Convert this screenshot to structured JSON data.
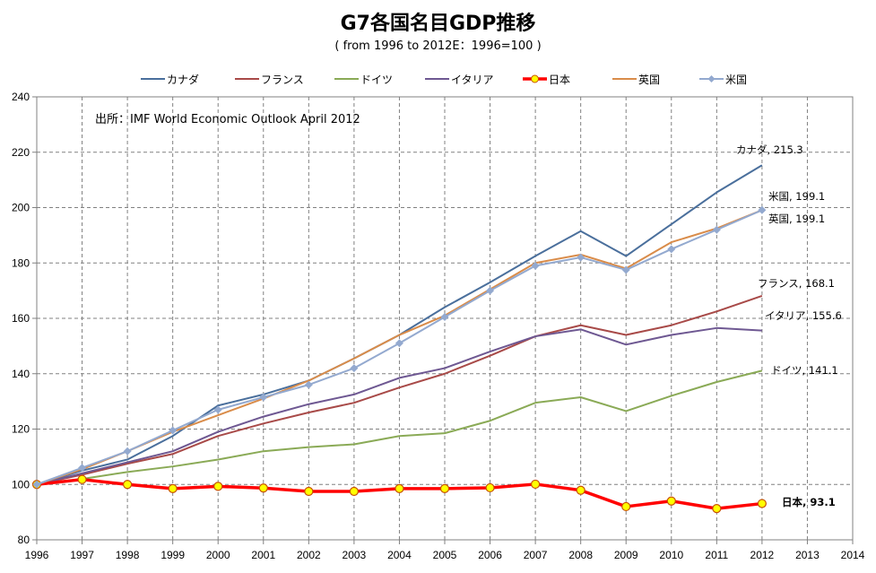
{
  "chart_data": {
    "type": "line",
    "title": "G7各国名目GDP推移",
    "subtitle": "( from  1996  to  2012E：1996=100 )",
    "annotation": "出所：IMF World Economic Outlook  April 2012",
    "xlabel": "",
    "ylabel": "",
    "x": [
      1996,
      1997,
      1998,
      1999,
      2000,
      2001,
      2002,
      2003,
      2004,
      2005,
      2006,
      2007,
      2008,
      2009,
      2010,
      2011,
      2012
    ],
    "xticks": [
      "1996",
      "1997",
      "1998",
      "1999",
      "2000",
      "2001",
      "2002",
      "2003",
      "2004",
      "2005",
      "2006",
      "2007",
      "2008",
      "2009",
      "2010",
      "2011",
      "2012",
      "2013",
      "2014"
    ],
    "xlim": [
      1996,
      2014
    ],
    "ylim": [
      80,
      240
    ],
    "yticks": [
      80,
      100,
      120,
      140,
      160,
      180,
      200,
      220,
      240
    ],
    "grid": true,
    "legend": "top",
    "series": [
      {
        "name": "カナダ",
        "color": "#4a6f9c",
        "marker": "none",
        "width": 2,
        "values": [
          100,
          105,
          109,
          117.5,
          128.5,
          132.5,
          137.5,
          145.5,
          154,
          164,
          173,
          182.5,
          191.5,
          182.5,
          194,
          205.5,
          215.3
        ],
        "label": "カナダ, 215.3"
      },
      {
        "name": "フランス",
        "color": "#a84a48",
        "marker": "none",
        "width": 2,
        "values": [
          100,
          103.5,
          107.5,
          111,
          117.5,
          122,
          126,
          129.5,
          135,
          140,
          146.5,
          153.5,
          157.5,
          154,
          157.5,
          162.5,
          168.1
        ],
        "label": "フランス, 168.1"
      },
      {
        "name": "ドイツ",
        "color": "#8aaa56",
        "marker": "none",
        "width": 2,
        "values": [
          100,
          102,
          104.5,
          106.5,
          109,
          112,
          113.5,
          114.5,
          117.5,
          118.5,
          123,
          129.5,
          131.5,
          126.5,
          132,
          137,
          141.1
        ],
        "label": "ドイツ, 141.1"
      },
      {
        "name": "イタリア",
        "color": "#6e5892",
        "marker": "none",
        "width": 2,
        "values": [
          100,
          104,
          108,
          112,
          119,
          124.5,
          129,
          132.5,
          138.5,
          142,
          148,
          153.5,
          156,
          150.5,
          154,
          156.5,
          155.6
        ],
        "label": "イタリア, 155.6"
      },
      {
        "name": "日本",
        "color": "#ff0000",
        "marker": "circle",
        "markerFill": "#ffff00",
        "markerStroke": "#c85000",
        "width": 3.5,
        "values": [
          100,
          101.8,
          100,
          98.5,
          99.3,
          98.7,
          97.5,
          97.5,
          98.5,
          98.5,
          98.8,
          100.1,
          97.9,
          92,
          94,
          91.3,
          93.1
        ],
        "label": "日本, 93.1",
        "labelBold": true
      },
      {
        "name": "英国",
        "color": "#d98c4a",
        "marker": "none",
        "width": 2,
        "values": [
          100,
          105.5,
          112,
          119,
          125,
          131,
          137.5,
          145.5,
          154,
          161,
          170.5,
          180,
          183,
          178,
          187.5,
          192.5,
          199.1
        ],
        "label": "英国, 199.1"
      },
      {
        "name": "米国",
        "color": "#93a9cf",
        "marker": "diamond",
        "width": 2,
        "values": [
          100,
          106,
          112,
          119.5,
          127,
          131.5,
          136,
          142,
          151,
          160.5,
          170,
          179,
          182,
          177.5,
          185,
          192,
          199.1
        ],
        "label": "米国, 199.1"
      }
    ]
  }
}
